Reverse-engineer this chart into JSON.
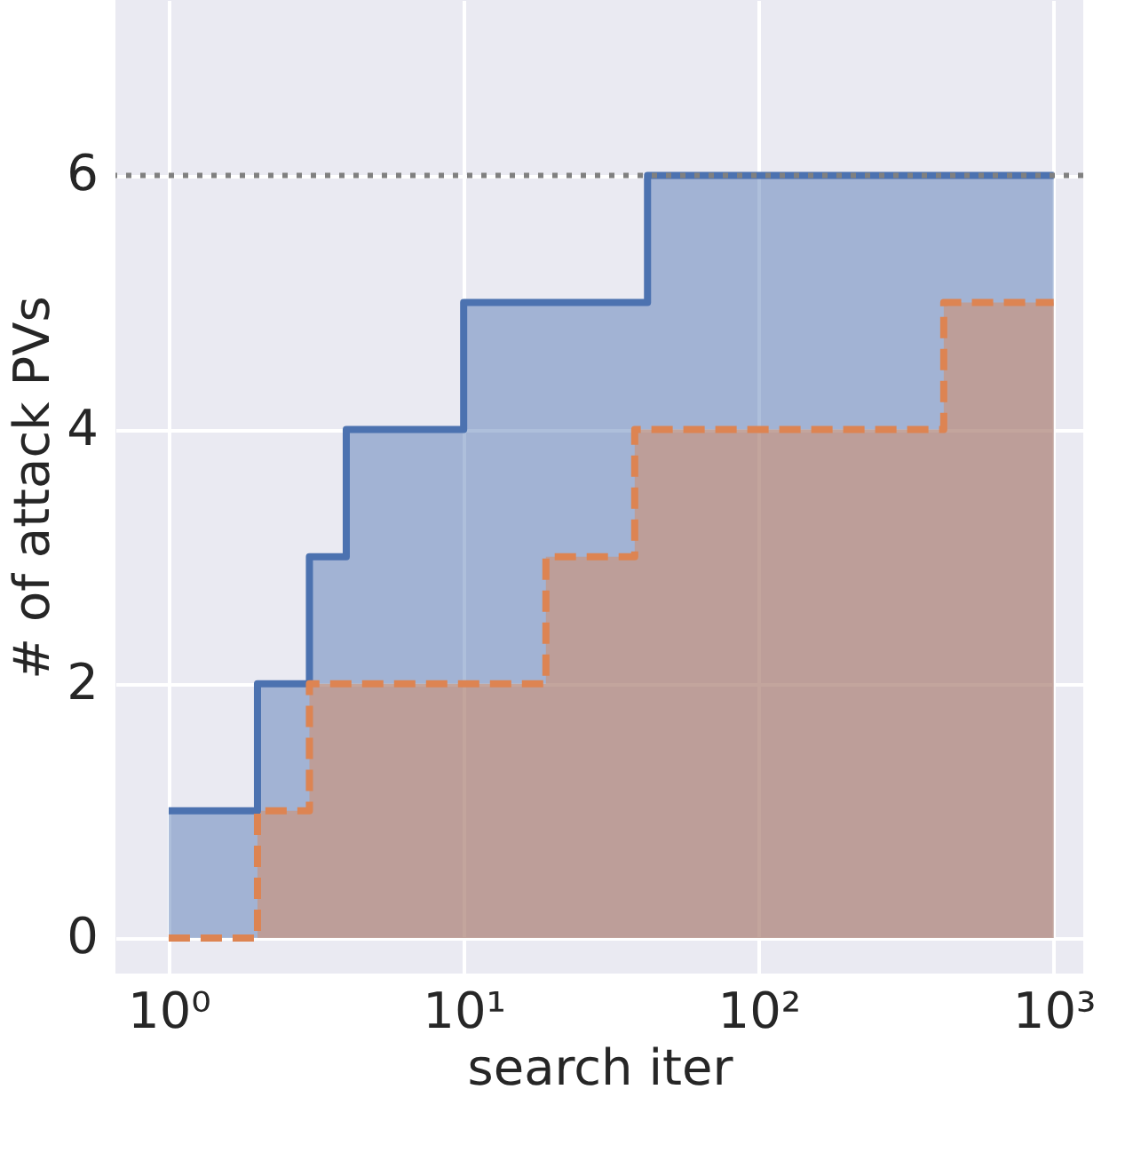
{
  "chart_data": {
    "type": "area",
    "xlabel": "search iter",
    "ylabel": "# of attack PVs",
    "log": "x",
    "grid": true,
    "line_style": "solid",
    "legend": false,
    "xlim": [
      0.66,
      1260
    ],
    "xticks": [
      {
        "value": 1,
        "label": "10⁰"
      },
      {
        "value": 10,
        "label": "10¹"
      },
      {
        "value": 100,
        "label": "10²"
      },
      {
        "value": 1000,
        "label": "10³"
      }
    ],
    "ylim": [
      -0.28,
      7.38
    ],
    "yticks": [
      {
        "value": 0,
        "label": "0"
      },
      {
        "value": 2,
        "label": "2"
      },
      {
        "value": 4,
        "label": "4"
      },
      {
        "value": 6,
        "label": "6"
      }
    ],
    "series": [
      {
        "type": "area",
        "color": "#4c72b0",
        "x": [
          1,
          2,
          2,
          3,
          3,
          4,
          4,
          10,
          10,
          42,
          42,
          1000
        ],
        "values": [
          1,
          1,
          2,
          2,
          3,
          3,
          4,
          4,
          5,
          5,
          6,
          6
        ]
      },
      {
        "type": "area",
        "color": "#dd8452",
        "line_style": "dashed",
        "x": [
          1,
          2,
          2,
          3,
          3,
          19,
          19,
          38,
          38,
          424,
          424,
          1000
        ],
        "values": [
          0,
          0,
          1,
          1,
          2,
          2,
          3,
          3,
          4,
          4,
          5,
          5
        ]
      }
    ],
    "ref_lines": [
      {
        "axis": "y",
        "value": 6,
        "color": "#808080",
        "line_style": "dotted"
      }
    ]
  }
}
